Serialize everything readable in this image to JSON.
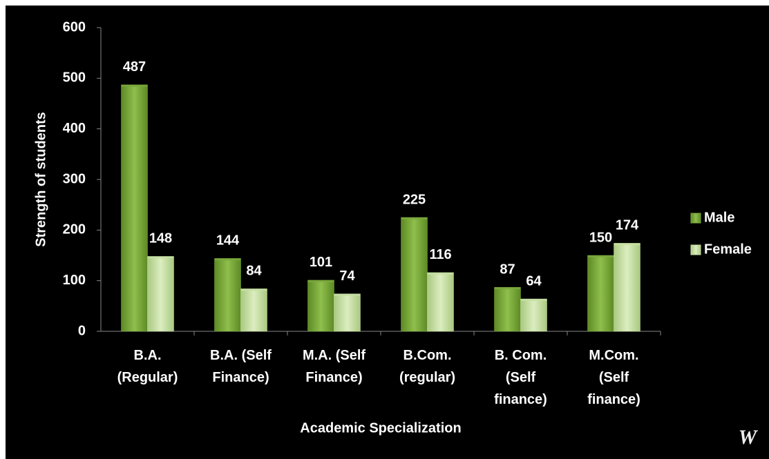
{
  "chart_data": {
    "type": "bar",
    "xlabel": "Academic Specialization",
    "ylabel": "Strength of students",
    "categories": [
      "B.A.\n(Regular)",
      "B.A. (Self\nFinance)",
      "M.A. (Self\nFinance)",
      "B.Com.\n(regular)",
      "B. Com.\n(Self\nfinance)",
      "M.Com.\n(Self\nfinance)"
    ],
    "series": [
      {
        "name": "Male",
        "color": "#7aa83c",
        "values": [
          487,
          144,
          101,
          225,
          87,
          150
        ]
      },
      {
        "name": "Female",
        "color": "#c6dea2",
        "values": [
          148,
          84,
          74,
          116,
          64,
          174
        ]
      }
    ],
    "ylim": [
      0,
      600
    ],
    "yticks": [
      0,
      100,
      200,
      300,
      400,
      500,
      600
    ],
    "grid": false,
    "legend": "right",
    "watermark": "W"
  }
}
